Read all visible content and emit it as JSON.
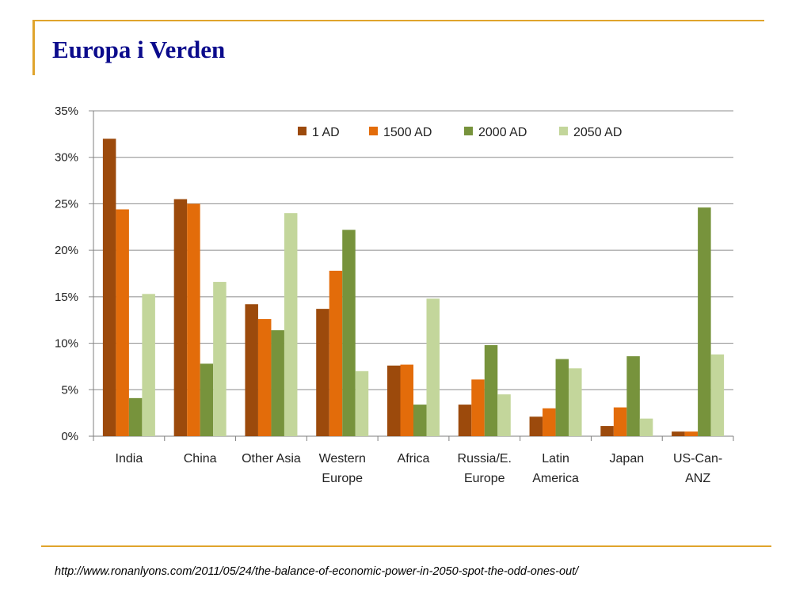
{
  "slide": {
    "title": "Europa i Verden",
    "source_url": "http://www.ronanlyons.com/2011/05/24/the-balance-of-economic-power-in-2050-spot-the-odd-ones-out/"
  },
  "colors": {
    "accent_rule": "#e0a42c",
    "title": "#0b0b8c"
  },
  "chart_data": {
    "type": "bar",
    "title": "",
    "xlabel": "",
    "ylabel": "",
    "ylim": [
      0,
      35
    ],
    "y_ticks": [
      "0%",
      "5%",
      "10%",
      "15%",
      "20%",
      "25%",
      "30%",
      "35%"
    ],
    "grid": true,
    "legend_position": "top-right",
    "categories": [
      [
        "India"
      ],
      [
        "China"
      ],
      [
        "Other Asia"
      ],
      [
        "Western",
        "Europe"
      ],
      [
        "Africa"
      ],
      [
        "Russia/E.",
        "Europe"
      ],
      [
        "Latin",
        "America"
      ],
      [
        "Japan"
      ],
      [
        "US-Can-",
        "ANZ"
      ]
    ],
    "series": [
      {
        "name": "1 AD",
        "color": "#9c4a0c",
        "values": [
          32,
          25.5,
          14.2,
          13.7,
          7.6,
          3.4,
          2.1,
          1.1,
          0.5
        ]
      },
      {
        "name": "1500 AD",
        "color": "#e36c0a",
        "values": [
          24.4,
          25,
          12.6,
          17.8,
          7.7,
          6.1,
          3.0,
          3.1,
          0.5
        ]
      },
      {
        "name": "2000 AD",
        "color": "#77933c",
        "values": [
          4.1,
          7.8,
          11.4,
          22.2,
          3.4,
          9.8,
          8.3,
          8.6,
          24.6
        ]
      },
      {
        "name": "2050 AD",
        "color": "#c3d69b",
        "values": [
          15.3,
          16.6,
          24.0,
          7.0,
          14.8,
          4.5,
          7.3,
          1.9,
          8.8
        ]
      }
    ]
  }
}
